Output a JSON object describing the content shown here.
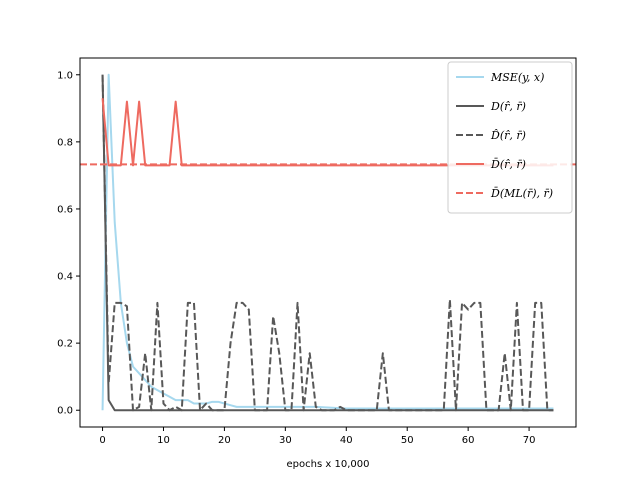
{
  "chart_data": {
    "type": "line",
    "title": "",
    "xlabel": "epochs x 10,000",
    "ylabel": "",
    "xlim": [
      -3.7,
      77.7
    ],
    "ylim": [
      -0.05,
      1.05
    ],
    "xticks": [
      0,
      10,
      20,
      30,
      40,
      50,
      60,
      70
    ],
    "yticks": [
      0.0,
      0.2,
      0.4,
      0.6,
      0.8,
      1.0
    ],
    "ytick_labels": [
      "0.0",
      "0.2",
      "0.4",
      "0.6",
      "0.8",
      "1.0"
    ],
    "legend_position": "upper right",
    "series": [
      {
        "name": "MSE(y, x)",
        "style": "solid",
        "color": "#a6d8ee",
        "x": [
          0,
          1,
          2,
          3,
          4,
          5,
          6,
          7,
          8,
          9,
          10,
          11,
          12,
          13,
          14,
          15,
          16,
          17,
          18,
          19,
          20,
          21,
          22,
          23,
          24,
          25,
          30,
          35,
          40,
          45,
          50,
          55,
          60,
          65,
          70,
          74
        ],
        "y": [
          0.0,
          1.0,
          0.56,
          0.32,
          0.2,
          0.13,
          0.11,
          0.09,
          0.07,
          0.06,
          0.05,
          0.04,
          0.03,
          0.03,
          0.03,
          0.02,
          0.02,
          0.02,
          0.025,
          0.025,
          0.02,
          0.015,
          0.01,
          0.01,
          0.01,
          0.01,
          0.01,
          0.01,
          0.005,
          0.005,
          0.005,
          0.005,
          0.005,
          0.005,
          0.005,
          0.005
        ]
      },
      {
        "name": "D(r̂, r̄)",
        "style": "solid",
        "color": "#585858",
        "x": [
          0,
          1,
          2,
          3,
          74
        ],
        "y": [
          1.0,
          0.03,
          0.0,
          0.0,
          0.0
        ]
      },
      {
        "name": "D̂(r̂, r̄)",
        "style": "dashed",
        "color": "#585858",
        "x": [
          0,
          1,
          2,
          3,
          4,
          5,
          6,
          7,
          8,
          9,
          10,
          11,
          12,
          13,
          14,
          15,
          16,
          17,
          18,
          19,
          20,
          21,
          22,
          23,
          24,
          25,
          26,
          27,
          28,
          29,
          30,
          31,
          32,
          33,
          34,
          35,
          36,
          37,
          38,
          39,
          40,
          41,
          42,
          43,
          44,
          45,
          46,
          47,
          48,
          49,
          50,
          51,
          52,
          53,
          54,
          55,
          56,
          57,
          58,
          59,
          60,
          61,
          62,
          63,
          64,
          65,
          66,
          67,
          68,
          69,
          70,
          71,
          72,
          73,
          74
        ],
        "y": [
          1.0,
          0.08,
          0.32,
          0.32,
          0.31,
          0.0,
          0.01,
          0.17,
          0.0,
          0.32,
          0.02,
          0.0,
          0.01,
          0.0,
          0.32,
          0.32,
          0.0,
          0.02,
          0.0,
          0.0,
          0.0,
          0.2,
          0.32,
          0.32,
          0.3,
          0.0,
          0.0,
          0.0,
          0.28,
          0.17,
          0.0,
          0.0,
          0.32,
          0.0,
          0.17,
          0.01,
          0.0,
          0.0,
          0.0,
          0.01,
          0.0,
          0.0,
          0.0,
          0.0,
          0.0,
          0.0,
          0.17,
          0.0,
          0.0,
          0.0,
          0.0,
          0.0,
          0.0,
          0.0,
          0.0,
          0.0,
          0.0,
          0.33,
          0.0,
          0.32,
          0.3,
          0.32,
          0.32,
          0.0,
          0.0,
          0.0,
          0.17,
          0.0,
          0.32,
          0.0,
          0.0,
          0.32,
          0.32,
          0.0,
          0.0
        ]
      },
      {
        "name": "D̄(r̂, r̄)",
        "style": "solid",
        "color": "#ee6a60",
        "x": [
          0,
          1,
          2,
          3,
          4,
          5,
          6,
          7,
          8,
          9,
          10,
          11,
          12,
          13,
          14,
          74
        ],
        "y": [
          0.93,
          0.73,
          0.73,
          0.73,
          0.92,
          0.73,
          0.92,
          0.73,
          0.73,
          0.73,
          0.73,
          0.73,
          0.92,
          0.73,
          0.73,
          0.73
        ]
      },
      {
        "name": "D̄(ML(r̄), r̄)",
        "style": "dashed",
        "color": "#ee6a60",
        "x": [
          -3.7,
          77.7
        ],
        "y": [
          0.733,
          0.733
        ]
      }
    ],
    "legend": [
      {
        "label": "MSE(y, x)",
        "color": "#a6d8ee",
        "style": "solid"
      },
      {
        "label": "D(r̂, r̄)",
        "color": "#585858",
        "style": "solid"
      },
      {
        "label": "D̂(r̂, r̄)",
        "color": "#585858",
        "style": "dashed"
      },
      {
        "label": "D̄(r̂, r̄)",
        "color": "#ee6a60",
        "style": "solid"
      },
      {
        "label": "D̄(ML(r̄), r̄)",
        "color": "#ee6a60",
        "style": "dashed"
      }
    ]
  }
}
